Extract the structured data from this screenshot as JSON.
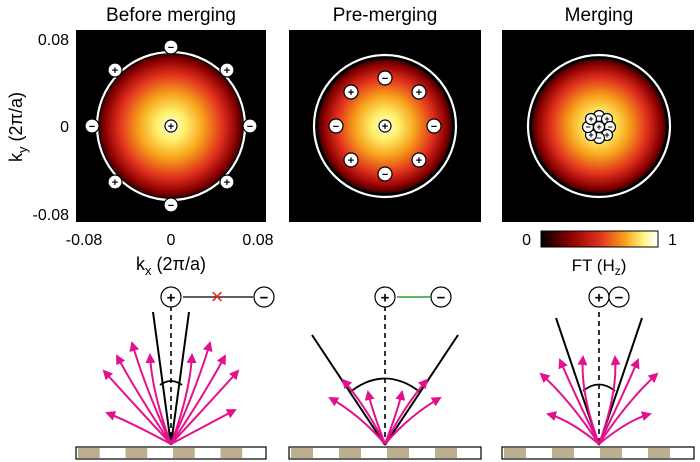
{
  "panels": [
    {
      "title": "Before merging"
    },
    {
      "title": "Pre-merging"
    },
    {
      "title": "Merging"
    }
  ],
  "axes": {
    "y_label": "k",
    "y_label_sub": "y",
    "y_label_unit": " (2π/a)",
    "x_label": "k",
    "x_label_sub": "x",
    "x_label_unit": " (2π/a)",
    "y_ticks": [
      "0.08",
      "0",
      "-0.08"
    ],
    "x_ticks": [
      "-0.08",
      "0",
      "0.08"
    ]
  },
  "colorbar": {
    "min": "0",
    "max": "1",
    "label": "FT (H",
    "label_sub": "z",
    "label_end": ")",
    "colors": [
      "#000000",
      "#8b0000",
      "#e0301e",
      "#f7a21b",
      "#fff58a",
      "#ffffff"
    ]
  },
  "charges": {
    "plus": "+",
    "minus": "−"
  },
  "connector": {
    "blocked_color": "#e8221b",
    "allowed_color": "#2ca02c",
    "blocked_mark": "×"
  },
  "ray_color": "#e3128c",
  "colors": {
    "accent": "#e3128c",
    "substrate_block": "#bdae8f"
  }
}
